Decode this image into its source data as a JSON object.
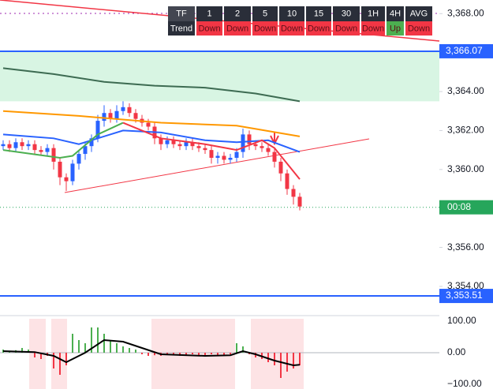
{
  "chart_data": [
    {
      "type": "candlestick",
      "open": [
        3361.2,
        3361.3,
        3361.1,
        3361.4,
        3361.2,
        3361.3,
        3361.0,
        3360.9,
        3361.1,
        3360.4,
        3359.6,
        3359.4,
        3360.3,
        3360.8,
        3361.2,
        3361.6,
        3362.5,
        3362.9,
        3362.6,
        3363.0,
        3363.2,
        3362.9,
        3362.6,
        3362.4,
        3362.2,
        3361.6,
        3361.3,
        3361.5,
        3361.3,
        3361.2,
        3361.4,
        3361.2,
        3361.1,
        3361.0,
        3360.6,
        3360.7,
        3360.5,
        3360.6,
        3360.9,
        3361.8,
        3361.3,
        3361.2,
        3361.1,
        3360.9,
        3360.4,
        3359.8,
        3359.0,
        3358.6
      ],
      "high": [
        3361.5,
        3361.5,
        3361.6,
        3361.6,
        3361.5,
        3361.5,
        3361.2,
        3361.3,
        3361.3,
        3360.6,
        3359.8,
        3360.5,
        3361.0,
        3361.4,
        3361.8,
        3362.8,
        3363.3,
        3363.1,
        3363.3,
        3363.5,
        3363.4,
        3363.1,
        3362.8,
        3362.6,
        3362.4,
        3361.8,
        3361.7,
        3361.7,
        3361.5,
        3361.6,
        3361.6,
        3361.4,
        3361.3,
        3361.2,
        3360.9,
        3360.9,
        3360.8,
        3361.1,
        3362.1,
        3362.0,
        3361.5,
        3361.4,
        3361.3,
        3361.1,
        3360.6,
        3360.0,
        3359.2,
        3358.8
      ],
      "low": [
        3361.0,
        3360.9,
        3360.9,
        3361.0,
        3361.0,
        3360.8,
        3360.7,
        3360.7,
        3360.0,
        3359.2,
        3358.9,
        3359.2,
        3360.0,
        3360.5,
        3360.9,
        3361.4,
        3362.2,
        3362.4,
        3362.4,
        3362.8,
        3362.7,
        3362.4,
        3362.2,
        3362.0,
        3361.3,
        3361.0,
        3361.1,
        3361.1,
        3361.0,
        3361.0,
        3361.0,
        3360.9,
        3360.8,
        3360.3,
        3360.3,
        3360.3,
        3360.3,
        3360.4,
        3360.6,
        3361.0,
        3361.0,
        3360.9,
        3360.7,
        3360.1,
        3359.4,
        3358.7,
        3358.2,
        3357.9
      ],
      "close": [
        3361.3,
        3361.1,
        3361.4,
        3361.2,
        3361.3,
        3361.0,
        3360.9,
        3361.1,
        3360.4,
        3359.6,
        3359.4,
        3360.3,
        3360.8,
        3361.2,
        3361.6,
        3362.5,
        3362.9,
        3362.6,
        3363.0,
        3363.2,
        3362.9,
        3362.6,
        3362.4,
        3362.2,
        3361.6,
        3361.3,
        3361.5,
        3361.3,
        3361.2,
        3361.4,
        3361.2,
        3361.1,
        3361.0,
        3360.6,
        3360.7,
        3360.5,
        3360.6,
        3360.9,
        3361.8,
        3361.3,
        3361.2,
        3361.1,
        3360.9,
        3360.4,
        3359.8,
        3359.0,
        3358.6,
        3358.1
      ],
      "up_color": "#2962ff",
      "down_color": "#f23645",
      "ylim": [
        3352.5,
        3368.7
      ],
      "yticks": [
        {
          "value": 3368,
          "label": "3,368.00"
        },
        {
          "value": 3364,
          "label": "3,364.00"
        },
        {
          "value": 3362,
          "label": "3,362.00"
        },
        {
          "value": 3360,
          "label": "3,360.00"
        },
        {
          "value": 3356,
          "label": "3,356.00"
        },
        {
          "value": 3354,
          "label": "3,354.00"
        }
      ],
      "series": [
        {
          "color": "#3d6b52",
          "x": [
            0,
            8,
            16,
            24,
            32,
            40,
            47
          ],
          "values": [
            3365.2,
            3364.9,
            3364.5,
            3364.3,
            3364.2,
            3363.9,
            3363.5
          ]
        },
        {
          "color": "#ff9800",
          "x": [
            0,
            12,
            25,
            37,
            47
          ],
          "values": [
            3363.0,
            3362.75,
            3362.4,
            3362.25,
            3361.7
          ]
        },
        {
          "color": "#2962ff",
          "x": [
            0,
            8,
            12,
            19,
            25,
            32,
            37,
            42,
            47
          ],
          "values": [
            3361.8,
            3361.6,
            3361.3,
            3362.0,
            3361.9,
            3361.5,
            3361.4,
            3361.5,
            3360.9
          ]
        },
        {
          "color": "#4caf50",
          "x": [
            0,
            9,
            11,
            15,
            19
          ],
          "values": [
            3361.0,
            3360.6,
            3360.7,
            3361.8,
            3362.4
          ]
        },
        {
          "color": "#f23645",
          "x": [
            19,
            25,
            32,
            37,
            41,
            43,
            47
          ],
          "values": [
            3362.4,
            3361.6,
            3361.3,
            3361.0,
            3361.5,
            3361.1,
            3359.5
          ]
        }
      ],
      "levels": [
        {
          "value": 3366.07,
          "label": "3,366.07"
        },
        {
          "value": 3353.51,
          "label": "3,353.51"
        }
      ],
      "level_color": "#2962ff",
      "zone_bottom": 3363.5,
      "zone_color": "#d8f5e3",
      "last_price": 3358.06,
      "countdown": "00:08",
      "last_color": "#26a65b"
    },
    {
      "type": "bar",
      "values": [
        10,
        5,
        8,
        15,
        10,
        -15,
        -20,
        -10,
        -50,
        -70,
        -40,
        60,
        40,
        30,
        80,
        80,
        60,
        40,
        30,
        20,
        15,
        10,
        -5,
        -10,
        -8,
        -10,
        -5,
        -8,
        -10,
        -8,
        -5,
        -10,
        -8,
        -5,
        -10,
        -8,
        -5,
        30,
        20,
        -5,
        -15,
        -20,
        -30,
        -40,
        -80,
        -60,
        -50,
        -40
      ],
      "up_color": "#4caf50",
      "down_color": "#f23645",
      "series": [
        {
          "color": "#000000",
          "x": [
            0,
            5,
            8,
            10,
            13,
            16,
            19,
            22,
            25,
            32,
            36,
            38,
            40,
            43,
            46,
            47
          ],
          "values": [
            5,
            2,
            -10,
            -30,
            0,
            40,
            35,
            15,
            -5,
            -10,
            -8,
            5,
            -5,
            -25,
            -40,
            -38
          ]
        }
      ],
      "ylim": [
        -115,
        117.5
      ],
      "yticks": [
        {
          "value": 100,
          "label": "100.00"
        },
        {
          "value": 0,
          "label": "0.00"
        },
        {
          "value": -100,
          "label": "−100.00"
        }
      ]
    }
  ],
  "trend_table": {
    "header": [
      "TF",
      "1",
      "2",
      "5",
      "10",
      "15",
      "30",
      "1H",
      "4H",
      "AVG"
    ],
    "row": [
      "Trend",
      "Down",
      "Down",
      "Down",
      "Down",
      "Down",
      "Down",
      "Down",
      "Up",
      "Down"
    ]
  }
}
